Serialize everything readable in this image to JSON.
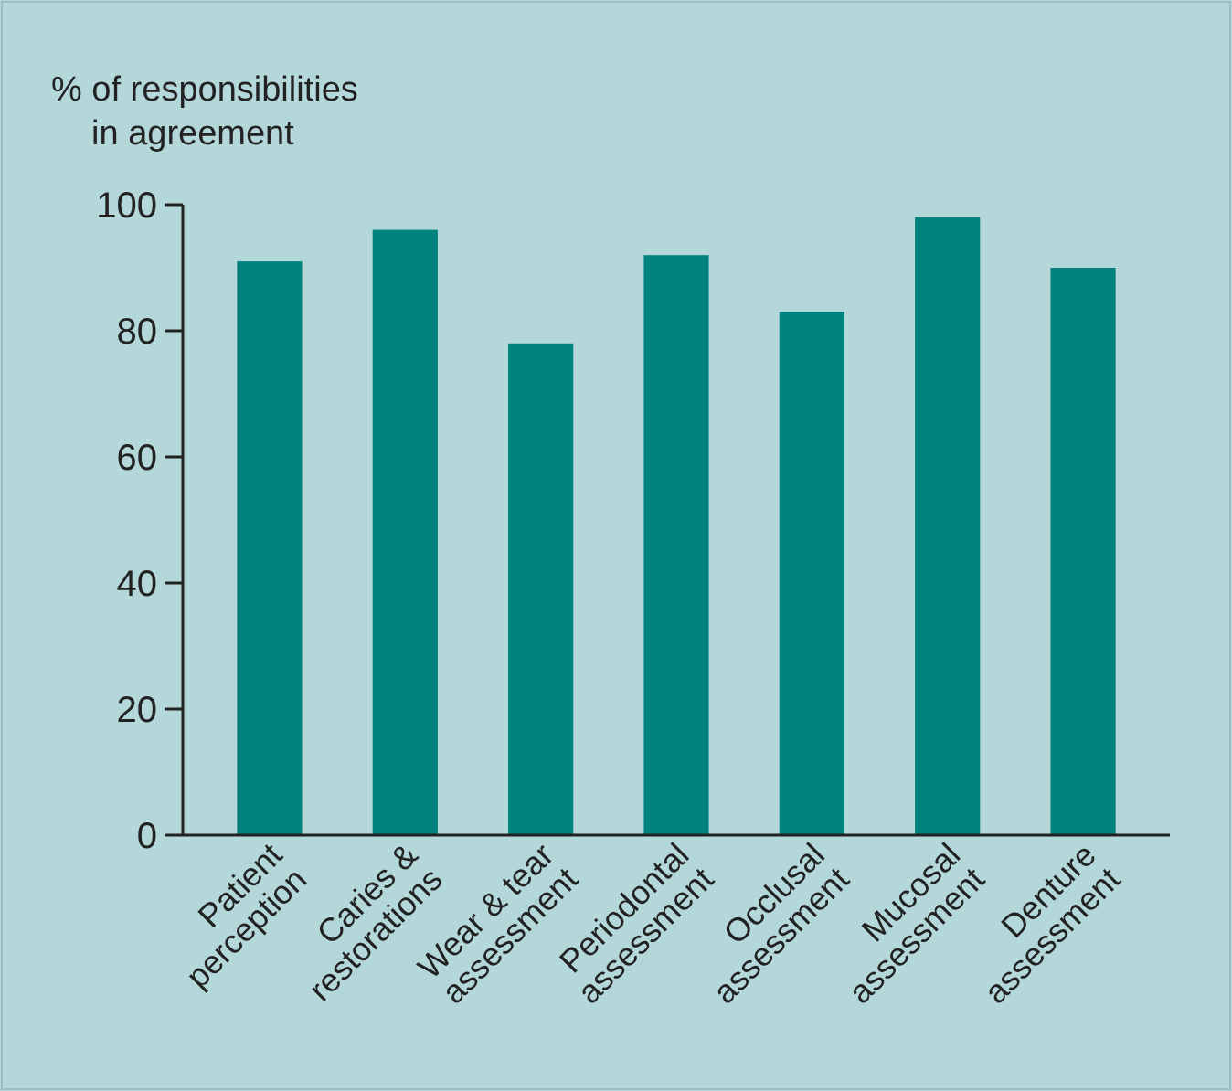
{
  "chart_data": {
    "type": "bar",
    "ylabel": "% of responsibilities in agreement",
    "categories": [
      "Patient perception",
      "Caries & restorations",
      "Wear & tear assessment",
      "Periodontal assessment",
      "Occlusal assessment",
      "Mucosal assessment",
      "Denture assessment"
    ],
    "values": [
      91,
      96,
      78,
      92,
      83,
      98,
      90
    ],
    "color": "#00827f",
    "ylim": [
      0,
      100
    ],
    "yticks": [
      0,
      20,
      40,
      60,
      80,
      100
    ],
    "grid": false
  }
}
